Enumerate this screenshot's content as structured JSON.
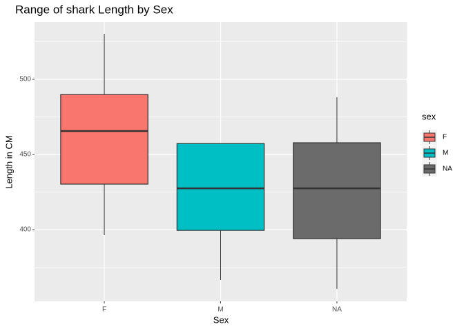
{
  "chart_data": {
    "type": "box",
    "title": "Range of shark Length by Sex",
    "x_label": "Sex",
    "y_label": "Length in CM",
    "categories": [
      "F",
      "M",
      "NA"
    ],
    "colors": [
      "#F8766D",
      "#00BFC4",
      "#6B6B6B"
    ],
    "whisker_low": [
      396.3,
      366.5,
      360.6
    ],
    "q1": [
      430.3,
      399.5,
      394.0
    ],
    "median": [
      465.6,
      427.5,
      427.5
    ],
    "q3": [
      489.9,
      457.3,
      457.8
    ],
    "whisker_high": [
      530.3,
      457.3,
      488.1
    ],
    "ylim": [
      352.3,
      538.1
    ],
    "yticks": [
      400,
      450,
      500
    ],
    "grid": true,
    "legend_title": "sex",
    "legend": "right"
  }
}
